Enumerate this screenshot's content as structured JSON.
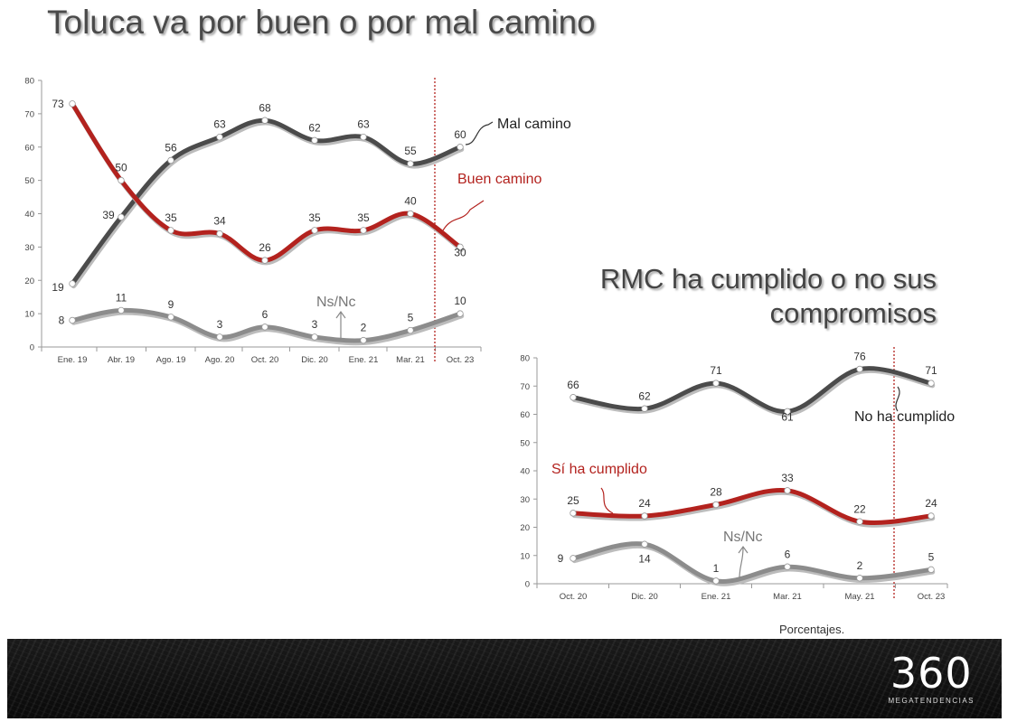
{
  "title1": "Toluca va por buen o por mal camino",
  "title2_line1": "RMC ha cumplido o no sus",
  "title2_line2": "compromisos",
  "footer_note": "Porcentajes.",
  "logo": {
    "number": "360",
    "subtitle": "MEGATENDENCIAS"
  },
  "chart_data": [
    {
      "type": "line",
      "categories": [
        "Ene. 19",
        "Abr. 19",
        "Ago. 19",
        "Ago. 20",
        "Oct. 20",
        "Dic. 20",
        "Ene. 21",
        "Mar. 21",
        "Oct. 23"
      ],
      "ylim": [
        0,
        80
      ],
      "yticks": [
        0,
        10,
        20,
        30,
        40,
        50,
        60,
        70,
        80
      ],
      "series": [
        {
          "name": "Mal camino",
          "color": "#4b4b4b",
          "values": [
            19,
            39,
            56,
            63,
            68,
            62,
            63,
            55,
            60
          ]
        },
        {
          "name": "Buen camino",
          "color": "#b3221e",
          "values": [
            73,
            50,
            35,
            34,
            26,
            35,
            35,
            40,
            30
          ]
        },
        {
          "name": "Ns/Nc",
          "color": "#8c8c8c",
          "values": [
            8,
            11,
            9,
            3,
            6,
            3,
            2,
            5,
            10
          ]
        }
      ],
      "grid": false
    },
    {
      "type": "line",
      "categories": [
        "Oct. 20",
        "Dic. 20",
        "Ene. 21",
        "Mar. 21",
        "May. 21",
        "Oct. 23"
      ],
      "ylim": [
        0,
        80
      ],
      "yticks": [
        0,
        10,
        20,
        30,
        40,
        50,
        60,
        70,
        80
      ],
      "series": [
        {
          "name": "No ha cumplido",
          "color": "#4b4b4b",
          "values": [
            66,
            62,
            71,
            61,
            76,
            71
          ]
        },
        {
          "name": "Sí ha cumplido",
          "color": "#b3221e",
          "values": [
            25,
            24,
            28,
            33,
            22,
            24
          ]
        },
        {
          "name": "Ns/Nc",
          "color": "#8c8c8c",
          "values": [
            9,
            14,
            1,
            6,
            2,
            5
          ]
        }
      ],
      "grid": false
    }
  ]
}
